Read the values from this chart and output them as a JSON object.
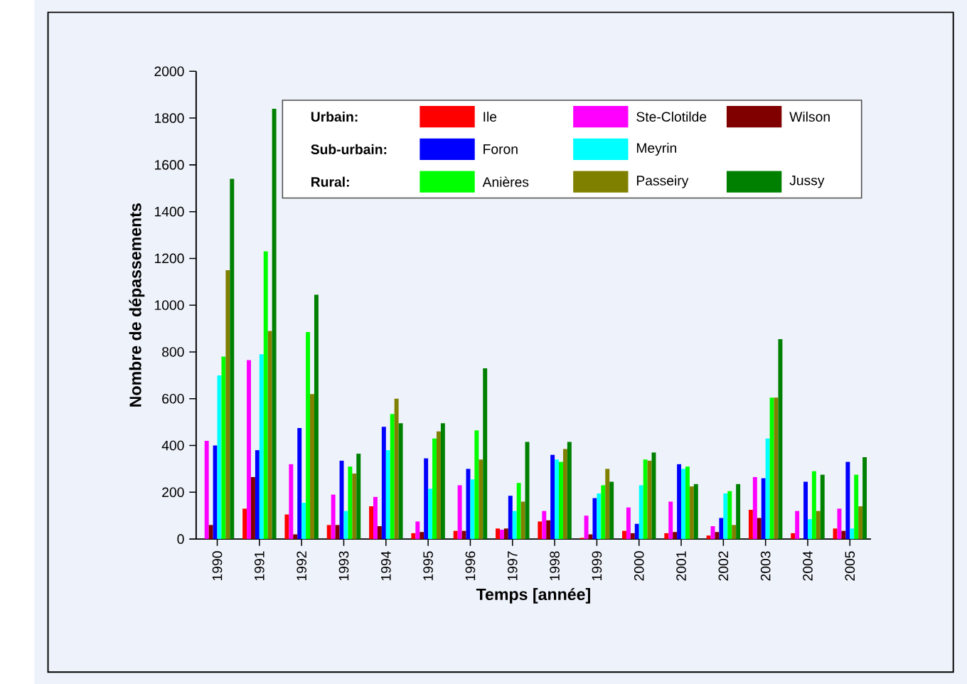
{
  "chart_data": {
    "type": "bar",
    "xlabel": "Temps [année]",
    "ylabel": "Nombre de dépassements",
    "categories": [
      "1990",
      "1991",
      "1992",
      "1993",
      "1994",
      "1995",
      "1996",
      "1997",
      "1998",
      "1999",
      "2000",
      "2001",
      "2002",
      "2003",
      "2004",
      "2005"
    ],
    "series": [
      {
        "name": "Ile",
        "color": "#ff0000",
        "values": [
          null,
          130,
          105,
          60,
          140,
          25,
          35,
          45,
          75,
          5,
          35,
          25,
          15,
          125,
          25,
          45
        ]
      },
      {
        "name": "Ste-Clotilde",
        "color": "#ff00ff",
        "values": [
          420,
          765,
          320,
          190,
          180,
          75,
          230,
          40,
          120,
          100,
          135,
          160,
          55,
          265,
          120,
          130
        ]
      },
      {
        "name": "Wilson",
        "color": "#800000",
        "values": [
          60,
          265,
          20,
          60,
          55,
          30,
          35,
          45,
          80,
          20,
          25,
          30,
          30,
          90,
          null,
          35
        ]
      },
      {
        "name": "Foron",
        "color": "#0000ff",
        "values": [
          400,
          380,
          475,
          335,
          480,
          345,
          300,
          185,
          360,
          175,
          65,
          320,
          90,
          260,
          245,
          330
        ]
      },
      {
        "name": "Meyrin",
        "color": "#00ffff",
        "values": [
          700,
          790,
          155,
          120,
          380,
          215,
          255,
          120,
          340,
          195,
          230,
          300,
          195,
          430,
          85,
          45
        ]
      },
      {
        "name": "Anières",
        "color": "#00ff00",
        "values": [
          780,
          1230,
          885,
          310,
          535,
          430,
          465,
          240,
          330,
          230,
          340,
          310,
          205,
          605,
          290,
          275
        ]
      },
      {
        "name": "Passeiry",
        "color": "#808000",
        "values": [
          1150,
          890,
          620,
          280,
          600,
          460,
          340,
          160,
          385,
          300,
          335,
          225,
          60,
          605,
          120,
          140
        ]
      },
      {
        "name": "Jussy",
        "color": "#008000",
        "values": [
          1540,
          1840,
          1045,
          365,
          495,
          495,
          730,
          415,
          415,
          245,
          370,
          235,
          235,
          855,
          275,
          350
        ]
      }
    ],
    "annotations": [
      "Urbain:",
      "Sub-urbain:",
      "Rural:"
    ],
    "ylim": [
      0,
      2000
    ],
    "yticks": [
      0,
      200,
      400,
      600,
      800,
      1000,
      1200,
      1400,
      1600,
      1800,
      2000
    ],
    "legend": "top",
    "grid": false
  }
}
